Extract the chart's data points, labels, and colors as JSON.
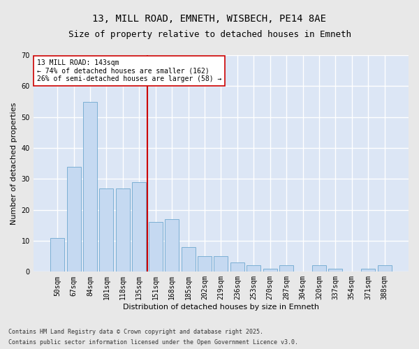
{
  "title": "13, MILL ROAD, EMNETH, WISBECH, PE14 8AE",
  "subtitle": "Size of property relative to detached houses in Emneth",
  "xlabel": "Distribution of detached houses by size in Emneth",
  "ylabel": "Number of detached properties",
  "categories": [
    "50sqm",
    "67sqm",
    "84sqm",
    "101sqm",
    "118sqm",
    "135sqm",
    "151sqm",
    "168sqm",
    "185sqm",
    "202sqm",
    "219sqm",
    "236sqm",
    "253sqm",
    "270sqm",
    "287sqm",
    "304sqm",
    "320sqm",
    "337sqm",
    "354sqm",
    "371sqm",
    "388sqm"
  ],
  "values": [
    11,
    34,
    55,
    27,
    27,
    29,
    16,
    17,
    8,
    5,
    5,
    3,
    2,
    1,
    2,
    0,
    2,
    1,
    0,
    1,
    2
  ],
  "bar_color": "#c5d9f1",
  "bar_edge_color": "#7bafd4",
  "fig_background_color": "#e8e8e8",
  "ax_background_color": "#dce6f5",
  "grid_color": "#ffffff",
  "ylim": [
    0,
    70
  ],
  "yticks": [
    0,
    10,
    20,
    30,
    40,
    50,
    60,
    70
  ],
  "vline_color": "#cc0000",
  "vline_x_index": 5.0,
  "annotation_text": "13 MILL ROAD: 143sqm\n← 74% of detached houses are smaller (162)\n26% of semi-detached houses are larger (58) →",
  "annotation_box_color": "#ffffff",
  "annotation_box_edge": "#cc0000",
  "footer_line1": "Contains HM Land Registry data © Crown copyright and database right 2025.",
  "footer_line2": "Contains public sector information licensed under the Open Government Licence v3.0.",
  "title_fontsize": 10,
  "subtitle_fontsize": 9,
  "axis_label_fontsize": 8,
  "tick_fontsize": 7,
  "annotation_fontsize": 7,
  "footer_fontsize": 6
}
